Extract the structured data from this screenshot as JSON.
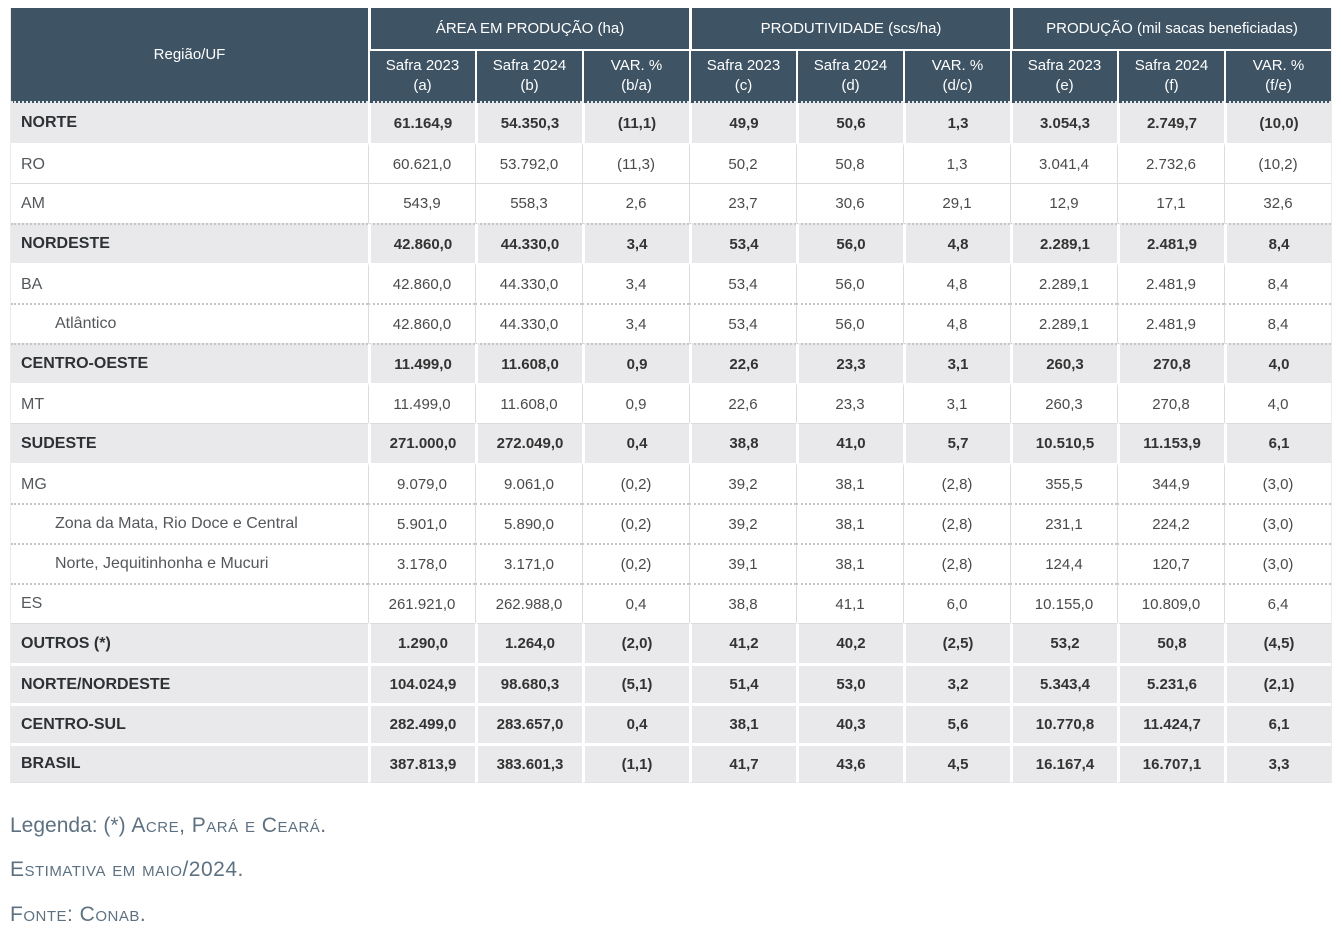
{
  "chart_data": {
    "type": "table",
    "corner_header": "Região/UF",
    "column_groups": [
      {
        "label": "ÁREA EM PRODUÇÃO (ha)",
        "columns": [
          "Safra 2023\n(a)",
          "Safra 2024\n(b)",
          "VAR. %\n(b/a)"
        ]
      },
      {
        "label": "PRODUTIVIDADE (scs/ha)",
        "columns": [
          "Safra 2023\n(c)",
          "Safra 2024\n(d)",
          "VAR. %\n(d/c)"
        ]
      },
      {
        "label": "PRODUÇÃO (mil sacas beneficiadas)",
        "columns": [
          "Safra 2023\n(e)",
          "Safra 2024\n(f)",
          "VAR. %\n(f/e)"
        ]
      }
    ],
    "rows": [
      {
        "label": "NORTE",
        "type": "region",
        "values": [
          "61.164,9",
          "54.350,3",
          "(11,1)",
          "49,9",
          "50,6",
          "1,3",
          "3.054,3",
          "2.749,7",
          "(10,0)"
        ]
      },
      {
        "label": "RO",
        "type": "state",
        "values": [
          "60.621,0",
          "53.792,0",
          "(11,3)",
          "50,2",
          "50,8",
          "1,3",
          "3.041,4",
          "2.732,6",
          "(10,2)"
        ]
      },
      {
        "label": "AM",
        "type": "state",
        "values": [
          "543,9",
          "558,3",
          "2,6",
          "23,7",
          "30,6",
          "29,1",
          "12,9",
          "17,1",
          "32,6"
        ]
      },
      {
        "label": "NORDESTE",
        "type": "region",
        "values": [
          "42.860,0",
          "44.330,0",
          "3,4",
          "53,4",
          "56,0",
          "4,8",
          "2.289,1",
          "2.481,9",
          "8,4"
        ]
      },
      {
        "label": "BA",
        "type": "state",
        "values": [
          "42.860,0",
          "44.330,0",
          "3,4",
          "53,4",
          "56,0",
          "4,8",
          "2.289,1",
          "2.481,9",
          "8,4"
        ]
      },
      {
        "label": "Atlântico",
        "type": "sub",
        "values": [
          "42.860,0",
          "44.330,0",
          "3,4",
          "53,4",
          "56,0",
          "4,8",
          "2.289,1",
          "2.481,9",
          "8,4"
        ]
      },
      {
        "label": "CENTRO-OESTE",
        "type": "region",
        "values": [
          "11.499,0",
          "11.608,0",
          "0,9",
          "22,6",
          "23,3",
          "3,1",
          "260,3",
          "270,8",
          "4,0"
        ]
      },
      {
        "label": "MT",
        "type": "state",
        "values": [
          "11.499,0",
          "11.608,0",
          "0,9",
          "22,6",
          "23,3",
          "3,1",
          "260,3",
          "270,8",
          "4,0"
        ]
      },
      {
        "label": "SUDESTE",
        "type": "region",
        "values": [
          "271.000,0",
          "272.049,0",
          "0,4",
          "38,8",
          "41,0",
          "5,7",
          "10.510,5",
          "11.153,9",
          "6,1"
        ]
      },
      {
        "label": "MG",
        "type": "state",
        "values": [
          "9.079,0",
          "9.061,0",
          "(0,2)",
          "39,2",
          "38,1",
          "(2,8)",
          "355,5",
          "344,9",
          "(3,0)"
        ]
      },
      {
        "label": "Zona da Mata, Rio Doce e Central",
        "type": "sub",
        "values": [
          "5.901,0",
          "5.890,0",
          "(0,2)",
          "39,2",
          "38,1",
          "(2,8)",
          "231,1",
          "224,2",
          "(3,0)"
        ]
      },
      {
        "label": "Norte, Jequitinhonha e Mucuri",
        "type": "sub",
        "values": [
          "3.178,0",
          "3.171,0",
          "(0,2)",
          "39,1",
          "38,1",
          "(2,8)",
          "124,4",
          "120,7",
          "(3,0)"
        ]
      },
      {
        "label": "ES",
        "type": "state",
        "values": [
          "261.921,0",
          "262.988,0",
          "0,4",
          "38,8",
          "41,1",
          "6,0",
          "10.155,0",
          "10.809,0",
          "6,4"
        ]
      },
      {
        "label": "OUTROS (*)",
        "type": "region",
        "values": [
          "1.290,0",
          "1.264,0",
          "(2,0)",
          "41,2",
          "40,2",
          "(2,5)",
          "53,2",
          "50,8",
          "(4,5)"
        ]
      },
      {
        "label": "NORTE/NORDESTE",
        "type": "region",
        "values": [
          "104.024,9",
          "98.680,3",
          "(5,1)",
          "51,4",
          "53,0",
          "3,2",
          "5.343,4",
          "5.231,6",
          "(2,1)"
        ]
      },
      {
        "label": "CENTRO-SUL",
        "type": "region",
        "values": [
          "282.499,0",
          "283.657,0",
          "0,4",
          "38,1",
          "40,3",
          "5,6",
          "10.770,8",
          "11.424,7",
          "6,1"
        ]
      },
      {
        "label": "BRASIL",
        "type": "region",
        "values": [
          "387.813,9",
          "383.601,3",
          "(1,1)",
          "41,7",
          "43,6",
          "4,5",
          "16.167,4",
          "16.707,1",
          "3,3"
        ]
      }
    ]
  },
  "footer": {
    "legend_prefix": "Legenda: (*) ",
    "legend_caps": "Acre, Pará e Ceará.",
    "estimate_note": "Estimativa em maio/2024.",
    "source_note": "Fonte: Conab."
  },
  "colors": {
    "header_bg": "#3e5363",
    "header_text": "#ffffff",
    "region_row_bg": "#e9e9eb",
    "grid_line": "#dcdcdc",
    "dotted_line": "#c6c6c6",
    "footer_text": "#5e7181"
  }
}
